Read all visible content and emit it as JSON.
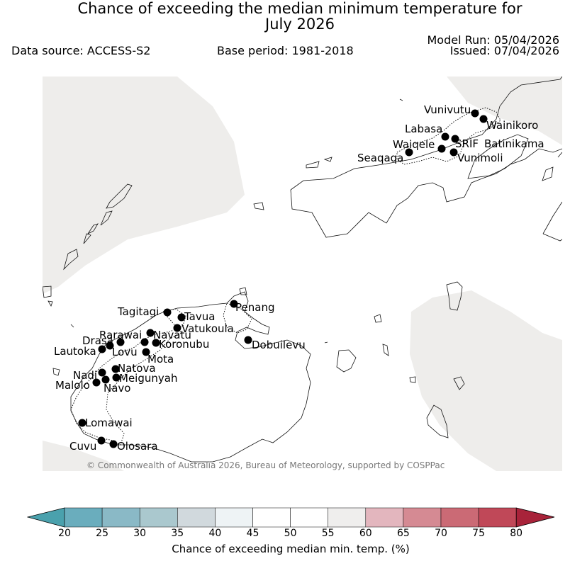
{
  "header": {
    "title_line1": "Chance of exceeding the median minimum temperature for",
    "title_line2": "July 2026",
    "data_source": "Data source: ACCESS-S2",
    "base_period": "Base period: 1981-2018",
    "model_run": "Model Run: 05/04/2026",
    "issued": "Issued: 07/04/2026"
  },
  "map": {
    "copyright": "© Commonwealth of Australia 2026, Bureau of Meteorology, supported by COSPPac",
    "stations": [
      {
        "name": "Vunivutu"
      },
      {
        "name": "Wainikoro"
      },
      {
        "name": "Labasa"
      },
      {
        "name": "Waiqele"
      },
      {
        "name": "SRIF"
      },
      {
        "name": "Batinikama"
      },
      {
        "name": "Seaqaqa"
      },
      {
        "name": "Vunimoli"
      },
      {
        "name": "Tagitagi"
      },
      {
        "name": "Penang"
      },
      {
        "name": "Tavua"
      },
      {
        "name": "Vatukoula"
      },
      {
        "name": "Rarawai"
      },
      {
        "name": "Navatu"
      },
      {
        "name": "Drasa"
      },
      {
        "name": "Koronubu"
      },
      {
        "name": "Lautoka"
      },
      {
        "name": "Lovu"
      },
      {
        "name": "Dobuilevu"
      },
      {
        "name": "Mota"
      },
      {
        "name": "Natova"
      },
      {
        "name": "Nadi"
      },
      {
        "name": "Meigunyah"
      },
      {
        "name": "Malolo"
      },
      {
        "name": "Navo"
      },
      {
        "name": "Lomawai"
      },
      {
        "name": "Cuvu"
      },
      {
        "name": "Olosara"
      }
    ],
    "colors": {
      "land": "#ffffff",
      "ocean_masked": "#eeedeb",
      "station": "#000000"
    }
  },
  "colorbar": {
    "label": "Chance of exceeding median min. temp. (%)",
    "ticks": [
      "20",
      "25",
      "30",
      "35",
      "40",
      "45",
      "50",
      "55",
      "60",
      "65",
      "70",
      "75",
      "80"
    ],
    "under_color": "#4aa1ad",
    "over_color": "#a8233a",
    "bins": [
      "#6aadbd",
      "#8ab9c6",
      "#aac8ce",
      "#d1d9dd",
      "#eef3f5",
      "#ffffff",
      "#ffffff",
      "#efeeed",
      "#e3b6be",
      "#d58a93",
      "#cb6a75",
      "#c04858"
    ]
  }
}
